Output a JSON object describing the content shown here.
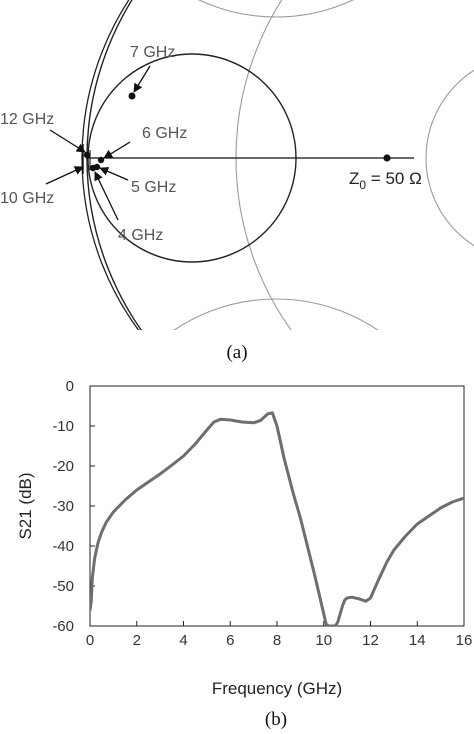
{
  "chart_data": [
    {
      "type": "smith",
      "panel_label": "(a)",
      "reference_label": {
        "main": "Z",
        "sub": "0",
        "rest": " = 50 Ω"
      },
      "annotations": [
        {
          "name": "annotation-7ghz",
          "text": "7 GHz"
        },
        {
          "name": "annotation-12ghz",
          "text": "12 GHz"
        },
        {
          "name": "annotation-6ghz",
          "text": "6 GHz"
        },
        {
          "name": "annotation-5ghz",
          "text": "5 GHz"
        },
        {
          "name": "annotation-10ghz",
          "text": "10 GHz"
        },
        {
          "name": "annotation-4ghz",
          "text": "4 GHz"
        }
      ]
    },
    {
      "type": "line",
      "panel_label": "(b)",
      "xlabel": "Frequency (GHz)",
      "ylabel": "S21 (dB)",
      "xlim": [
        0,
        16
      ],
      "ylim": [
        -60,
        0
      ],
      "xticks": [
        0,
        2,
        4,
        6,
        8,
        10,
        12,
        14,
        16
      ],
      "yticks": [
        0,
        -10,
        -20,
        -30,
        -40,
        -50,
        -60
      ],
      "grid": false,
      "line_color": "#6e6e6e",
      "series": [
        {
          "x": [
            0.0,
            0.05,
            0.1,
            0.2,
            0.35,
            0.5,
            0.7,
            1.0,
            1.5,
            2.0,
            2.5,
            3.0,
            3.5,
            4.0,
            4.5,
            5.0,
            5.3,
            5.6,
            6.0,
            6.5,
            7.0,
            7.3,
            7.6,
            7.8,
            8.0,
            8.3,
            8.7,
            9.0,
            9.3,
            9.6,
            9.8,
            10.0,
            10.1,
            10.2,
            10.25,
            10.4,
            10.5,
            10.6,
            10.7,
            10.8,
            10.9,
            11.0,
            11.2,
            11.5,
            11.8,
            12.0,
            12.3,
            12.7,
            13.0,
            13.5,
            14.0,
            14.5,
            15.0,
            15.5,
            16.0
          ],
          "y": [
            -56.0,
            -54.0,
            -48.0,
            -43.0,
            -39.0,
            -36.5,
            -34.0,
            -31.5,
            -28.5,
            -26.0,
            -24.0,
            -22.0,
            -19.8,
            -17.5,
            -14.5,
            -11.0,
            -9.0,
            -8.3,
            -8.5,
            -9.0,
            -9.2,
            -8.6,
            -7.0,
            -6.7,
            -10.0,
            -18.0,
            -27.0,
            -33.0,
            -40.0,
            -47.0,
            -52.0,
            -57.0,
            -59.5,
            -60.0,
            -60.0,
            -60.0,
            -60.0,
            -59.0,
            -57.0,
            -55.0,
            -53.5,
            -53.0,
            -52.8,
            -53.2,
            -53.8,
            -53.0,
            -49.0,
            -44.0,
            -41.0,
            -37.5,
            -34.5,
            -32.5,
            -30.5,
            -29.0,
            -28.0
          ]
        }
      ]
    }
  ]
}
